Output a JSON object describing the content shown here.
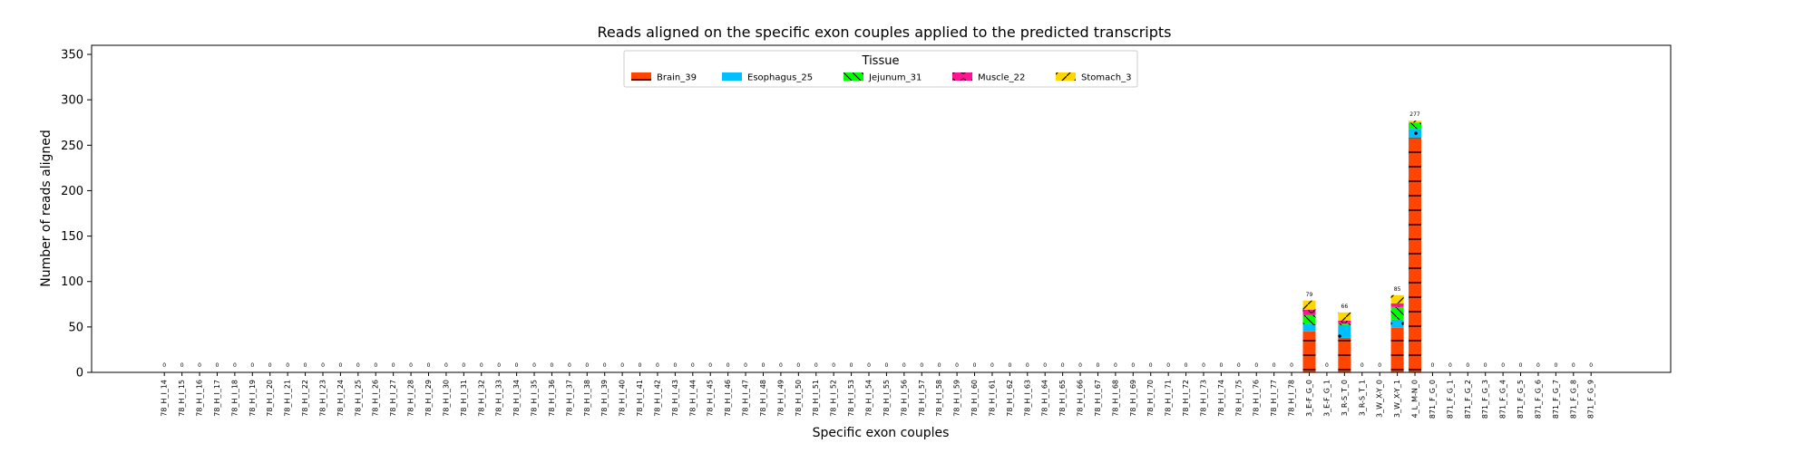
{
  "chart_data": {
    "type": "bar",
    "stacked": true,
    "title": "Reads aligned on the specific exon couples applied to the predicted transcripts",
    "xlabel": "Specific exon couples",
    "ylabel": "Number of reads aligned",
    "ylim": [
      0,
      360
    ],
    "yticks": [
      0,
      50,
      100,
      150,
      200,
      250,
      300,
      350
    ],
    "grid": false,
    "legend": {
      "title": "Tissue",
      "placement": "top-center",
      "ncol": 5
    },
    "categories": [
      "78_H_I_14",
      "78_H_I_15",
      "78_H_I_16",
      "78_H_I_17",
      "78_H_I_18",
      "78_H_I_19",
      "78_H_I_20",
      "78_H_I_21",
      "78_H_I_22",
      "78_H_I_23",
      "78_H_I_24",
      "78_H_I_25",
      "78_H_I_26",
      "78_H_I_27",
      "78_H_I_28",
      "78_H_I_29",
      "78_H_I_30",
      "78_H_I_31",
      "78_H_I_32",
      "78_H_I_33",
      "78_H_I_34",
      "78_H_I_35",
      "78_H_I_36",
      "78_H_I_37",
      "78_H_I_38",
      "78_H_I_39",
      "78_H_I_40",
      "78_H_I_41",
      "78_H_I_42",
      "78_H_I_43",
      "78_H_I_44",
      "78_H_I_45",
      "78_H_I_46",
      "78_H_I_47",
      "78_H_I_48",
      "78_H_I_49",
      "78_H_I_50",
      "78_H_I_51",
      "78_H_I_52",
      "78_H_I_53",
      "78_H_I_54",
      "78_H_I_55",
      "78_H_I_56",
      "78_H_I_57",
      "78_H_I_58",
      "78_H_I_59",
      "78_H_I_60",
      "78_H_I_61",
      "78_H_I_62",
      "78_H_I_63",
      "78_H_I_64",
      "78_H_I_65",
      "78_H_I_66",
      "78_H_I_67",
      "78_H_I_68",
      "78_H_I_69",
      "78_H_I_70",
      "78_H_I_71",
      "78_H_I_72",
      "78_H_I_73",
      "78_H_I_74",
      "78_H_I_75",
      "78_H_I_76",
      "78_H_I_77",
      "78_H_I_78",
      "3_E-F_G_0",
      "3_E-F_G_1",
      "3_R-S_T_0",
      "3_R-S_T_1",
      "3_W_X-Y_0",
      "3_W_X-Y_1",
      "4_L_M-N_0",
      "871_F_G_0",
      "871_F_G_1",
      "871_F_G_2",
      "871_F_G_3",
      "871_F_G_4",
      "871_F_G_5",
      "871_F_G_6",
      "871_F_G_7",
      "871_F_G_8",
      "871_F_G_9"
    ],
    "series": [
      {
        "name": "Brain_39",
        "color": "#ff4500",
        "pattern": "hline",
        "values": [
          0,
          0,
          0,
          0,
          0,
          0,
          0,
          0,
          0,
          0,
          0,
          0,
          0,
          0,
          0,
          0,
          0,
          0,
          0,
          0,
          0,
          0,
          0,
          0,
          0,
          0,
          0,
          0,
          0,
          0,
          0,
          0,
          0,
          0,
          0,
          0,
          0,
          0,
          0,
          0,
          0,
          0,
          0,
          0,
          0,
          0,
          0,
          0,
          0,
          0,
          0,
          0,
          0,
          0,
          0,
          0,
          0,
          0,
          0,
          0,
          0,
          0,
          0,
          0,
          0,
          45,
          0,
          38,
          0,
          0,
          49,
          258,
          0,
          0,
          0,
          0,
          0,
          0,
          0,
          0,
          0,
          0
        ]
      },
      {
        "name": "Esophagus_25",
        "color": "#00bfff",
        "pattern": "dot",
        "values": [
          0,
          0,
          0,
          0,
          0,
          0,
          0,
          0,
          0,
          0,
          0,
          0,
          0,
          0,
          0,
          0,
          0,
          0,
          0,
          0,
          0,
          0,
          0,
          0,
          0,
          0,
          0,
          0,
          0,
          0,
          0,
          0,
          0,
          0,
          0,
          0,
          0,
          0,
          0,
          0,
          0,
          0,
          0,
          0,
          0,
          0,
          0,
          0,
          0,
          0,
          0,
          0,
          0,
          0,
          0,
          0,
          0,
          0,
          0,
          0,
          0,
          0,
          0,
          0,
          0,
          8,
          0,
          14,
          0,
          0,
          9,
          10,
          0,
          0,
          0,
          0,
          0,
          0,
          0,
          0,
          0,
          0
        ]
      },
      {
        "name": "Jejunum_31",
        "color": "#00ff00",
        "pattern": "backslash",
        "values": [
          0,
          0,
          0,
          0,
          0,
          0,
          0,
          0,
          0,
          0,
          0,
          0,
          0,
          0,
          0,
          0,
          0,
          0,
          0,
          0,
          0,
          0,
          0,
          0,
          0,
          0,
          0,
          0,
          0,
          0,
          0,
          0,
          0,
          0,
          0,
          0,
          0,
          0,
          0,
          0,
          0,
          0,
          0,
          0,
          0,
          0,
          0,
          0,
          0,
          0,
          0,
          0,
          0,
          0,
          0,
          0,
          0,
          0,
          0,
          0,
          0,
          0,
          0,
          0,
          0,
          10,
          0,
          2,
          0,
          0,
          14,
          7,
          0,
          0,
          0,
          0,
          0,
          0,
          0,
          0,
          0,
          0
        ]
      },
      {
        "name": "Muscle_22",
        "color": "#ff1493",
        "pattern": "circle",
        "values": [
          0,
          0,
          0,
          0,
          0,
          0,
          0,
          0,
          0,
          0,
          0,
          0,
          0,
          0,
          0,
          0,
          0,
          0,
          0,
          0,
          0,
          0,
          0,
          0,
          0,
          0,
          0,
          0,
          0,
          0,
          0,
          0,
          0,
          0,
          0,
          0,
          0,
          0,
          0,
          0,
          0,
          0,
          0,
          0,
          0,
          0,
          0,
          0,
          0,
          0,
          0,
          0,
          0,
          0,
          0,
          0,
          0,
          0,
          0,
          0,
          0,
          0,
          0,
          0,
          0,
          6,
          0,
          3,
          0,
          0,
          4,
          0,
          0,
          0,
          0,
          0,
          0,
          0,
          0,
          0,
          0,
          0
        ]
      },
      {
        "name": "Stomach_3",
        "color": "#ffd700",
        "pattern": "slash",
        "values": [
          0,
          0,
          0,
          0,
          0,
          0,
          0,
          0,
          0,
          0,
          0,
          0,
          0,
          0,
          0,
          0,
          0,
          0,
          0,
          0,
          0,
          0,
          0,
          0,
          0,
          0,
          0,
          0,
          0,
          0,
          0,
          0,
          0,
          0,
          0,
          0,
          0,
          0,
          0,
          0,
          0,
          0,
          0,
          0,
          0,
          0,
          0,
          0,
          0,
          0,
          0,
          0,
          0,
          0,
          0,
          0,
          0,
          0,
          0,
          0,
          0,
          0,
          0,
          0,
          0,
          10,
          0,
          9,
          0,
          0,
          9,
          2,
          0,
          0,
          0,
          0,
          0,
          0,
          0,
          0,
          0,
          0
        ]
      }
    ],
    "totals": [
      0,
      0,
      0,
      0,
      0,
      0,
      0,
      0,
      0,
      0,
      0,
      0,
      0,
      0,
      0,
      0,
      0,
      0,
      0,
      0,
      0,
      0,
      0,
      0,
      0,
      0,
      0,
      0,
      0,
      0,
      0,
      0,
      0,
      0,
      0,
      0,
      0,
      0,
      0,
      0,
      0,
      0,
      0,
      0,
      0,
      0,
      0,
      0,
      0,
      0,
      0,
      0,
      0,
      0,
      0,
      0,
      0,
      0,
      0,
      0,
      0,
      0,
      0,
      0,
      0,
      79,
      0,
      66,
      0,
      0,
      85,
      277,
      0,
      0,
      0,
      0,
      0,
      0,
      0,
      0,
      0,
      0
    ]
  }
}
